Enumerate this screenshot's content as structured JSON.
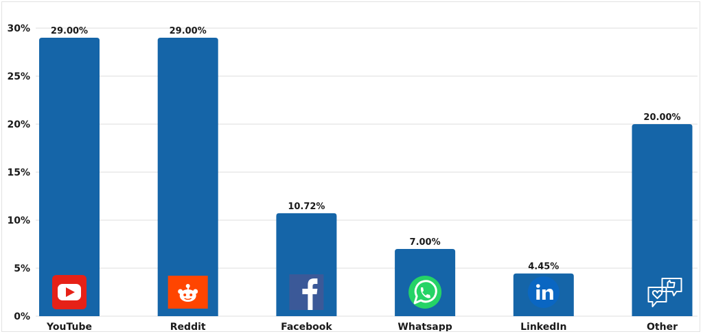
{
  "chart_data": {
    "type": "bar",
    "categories": [
      "YouTube",
      "Reddit",
      "Facebook",
      "Whatsapp",
      "LinkedIn",
      "Other"
    ],
    "values": [
      29.0,
      29.0,
      10.72,
      7.0,
      4.45,
      20.0
    ],
    "value_labels": [
      "29.00%",
      "29.00%",
      "10.72%",
      "7.00%",
      "4.45%",
      "20.00%"
    ],
    "category_icons": [
      "youtube-icon",
      "reddit-icon",
      "facebook-icon",
      "whatsapp-icon",
      "linkedin-icon",
      "social-chat-icon"
    ],
    "y_ticks": [
      0,
      5,
      10,
      15,
      20,
      25,
      30
    ],
    "y_tick_labels": [
      "0%",
      "5%",
      "10%",
      "15%",
      "20%",
      "25%",
      "30%"
    ],
    "ylim": [
      0,
      30
    ],
    "grid": true,
    "legend": "none",
    "title": "",
    "xlabel": "",
    "ylabel": "",
    "colors": {
      "bar": "#1565a8",
      "grid": "#dcdcdc",
      "youtube": "#e62117",
      "reddit": "#ff4500",
      "facebook": "#3b5998",
      "whatsapp": "#25d366",
      "linkedin": "#0a66c2"
    }
  }
}
